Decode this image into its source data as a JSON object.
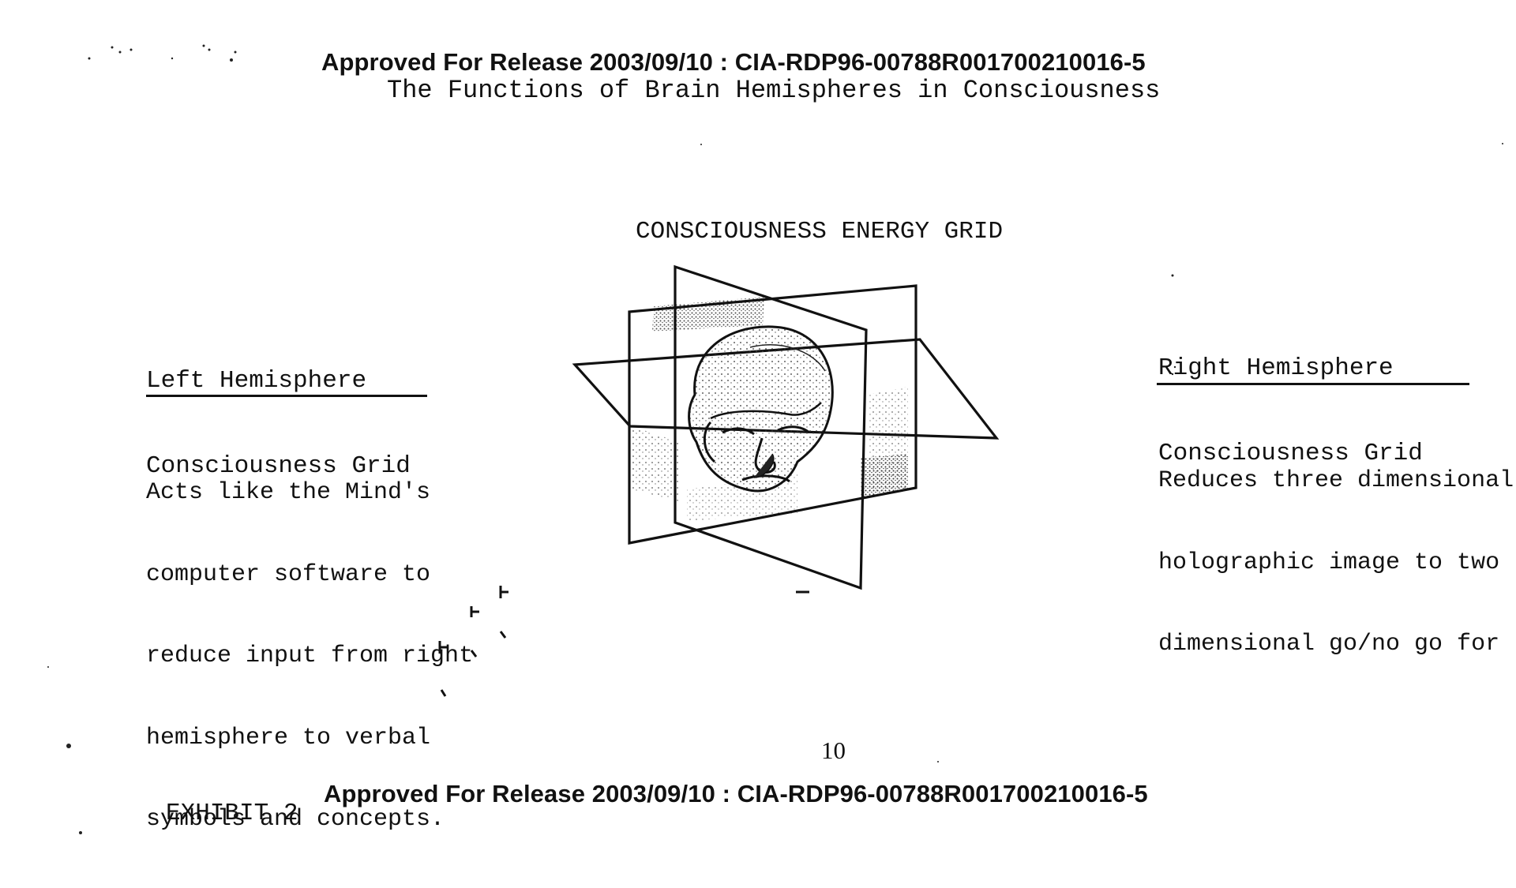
{
  "header": {
    "release": "Approved For Release 2003/09/10 : CIA-RDP96-00788R001700210016-5"
  },
  "document": {
    "title": "The Functions of Brain Hemispheres in Consciousness"
  },
  "figure": {
    "title": "CONSCIOUSNESS ENERGY GRID",
    "left": {
      "heading": [
        "Left Hemisphere",
        "Consciousness Grid"
      ],
      "body": [
        "Acts like the Mind's",
        "computer software to",
        "reduce input from right",
        "hemisphere to verbal",
        "symbols and concepts."
      ]
    },
    "right": {
      "heading": [
        "Right Hemisphere",
        "Consciousness Grid"
      ],
      "body": [
        "Reduces three dimensional",
        "holographic image to two",
        "dimensional go/no go for"
      ]
    }
  },
  "footer": {
    "page_number": "10",
    "exhibit": "EXHIBIT 2",
    "release": "Approved For Release 2003/09/10 : CIA-RDP96-00788R001700210016-5"
  }
}
